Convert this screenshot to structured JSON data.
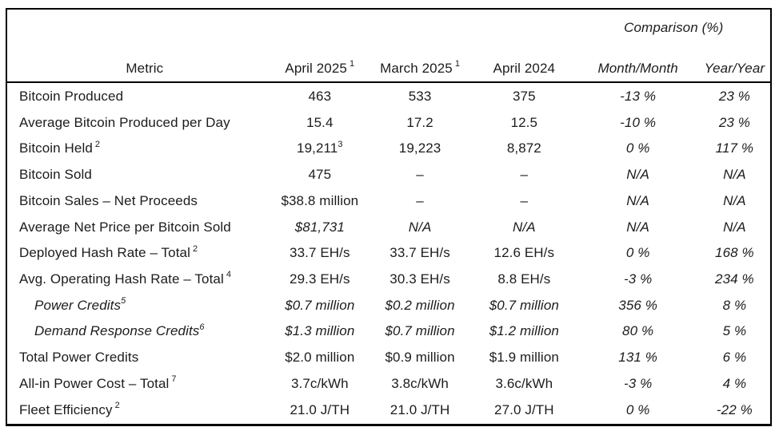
{
  "table": {
    "comparison_header": "Comparison (%)",
    "columns": {
      "metric": "Metric",
      "col1": "April 2025",
      "col1_sup": "1",
      "col2": "March 2025",
      "col2_sup": "1",
      "col3": "April 2024",
      "mm": "Month/Month",
      "yy": "Year/Year"
    },
    "rows": [
      {
        "metric": "Bitcoin Produced",
        "apr25": "463",
        "mar25": "533",
        "apr24": "375",
        "mm": "-13 %",
        "yy": "23 %"
      },
      {
        "metric": "Average Bitcoin Produced per Day",
        "apr25": "15.4",
        "mar25": "17.2",
        "apr24": "12.5",
        "mm": "-10 %",
        "yy": "23 %"
      },
      {
        "metric": "Bitcoin Held",
        "metric_sup": "2",
        "apr25": "19,211",
        "apr25_sup": "3",
        "mar25": "19,223",
        "apr24": "8,872",
        "mm": "0 %",
        "yy": "117 %"
      },
      {
        "metric": "Bitcoin Sold",
        "apr25": "475",
        "mar25": "–",
        "apr24": "–",
        "mm": "N/A",
        "yy": "N/A"
      },
      {
        "metric": "Bitcoin Sales – Net Proceeds",
        "apr25": "$38.8 million",
        "mar25": "–",
        "apr24": "–",
        "mm": "N/A",
        "yy": "N/A"
      },
      {
        "metric": "Average Net Price per Bitcoin Sold",
        "apr25": "$81,731",
        "mar25": "N/A",
        "apr24": "N/A",
        "mm": "N/A",
        "yy": "N/A",
        "italic_values": true
      },
      {
        "metric": "Deployed Hash Rate – Total",
        "metric_sup": "2",
        "apr25": "33.7 EH/s",
        "mar25": "33.7 EH/s",
        "apr24": "12.6 EH/s",
        "mm": "0 %",
        "yy": "168 %"
      },
      {
        "metric": "Avg. Operating Hash Rate – Total",
        "metric_sup": "4",
        "apr25": "29.3 EH/s",
        "mar25": "30.3 EH/s",
        "apr24": "8.8 EH/s",
        "mm": "-3 %",
        "yy": "234 %"
      },
      {
        "metric": "Power Credits",
        "metric_sup": "5",
        "indent": true,
        "italic_metric": true,
        "italic_values": true,
        "apr25": "$0.7 million",
        "mar25": "$0.2 million",
        "apr24": "$0.7 million",
        "mm": "356 %",
        "yy": "8 %"
      },
      {
        "metric": "Demand Response Credits",
        "metric_sup": "6",
        "indent": true,
        "italic_metric": true,
        "italic_values": true,
        "apr25": "$1.3 million",
        "mar25": "$0.7 million",
        "apr24": "$1.2 million",
        "mm": "80 %",
        "yy": "5 %"
      },
      {
        "metric": "Total Power Credits",
        "apr25": "$2.0 million",
        "mar25": "$0.9 million",
        "apr24": "$1.9 million",
        "mm": "131 %",
        "yy": "6 %"
      },
      {
        "metric": "All-in Power Cost – Total",
        "metric_sup": "7",
        "apr25": "3.7c/kWh",
        "mar25": "3.8c/kWh",
        "apr24": "3.6c/kWh",
        "mm": "-3 %",
        "yy": "4 %"
      },
      {
        "metric": "Fleet Efficiency",
        "metric_sup": "2",
        "apr25": "21.0 J/TH",
        "mar25": "21.0 J/TH",
        "apr24": "27.0 J/TH",
        "mm": "0 %",
        "yy": "-22 %"
      }
    ],
    "colors": {
      "text": "#1c1c1c",
      "border": "#000000",
      "background": "#ffffff"
    }
  }
}
